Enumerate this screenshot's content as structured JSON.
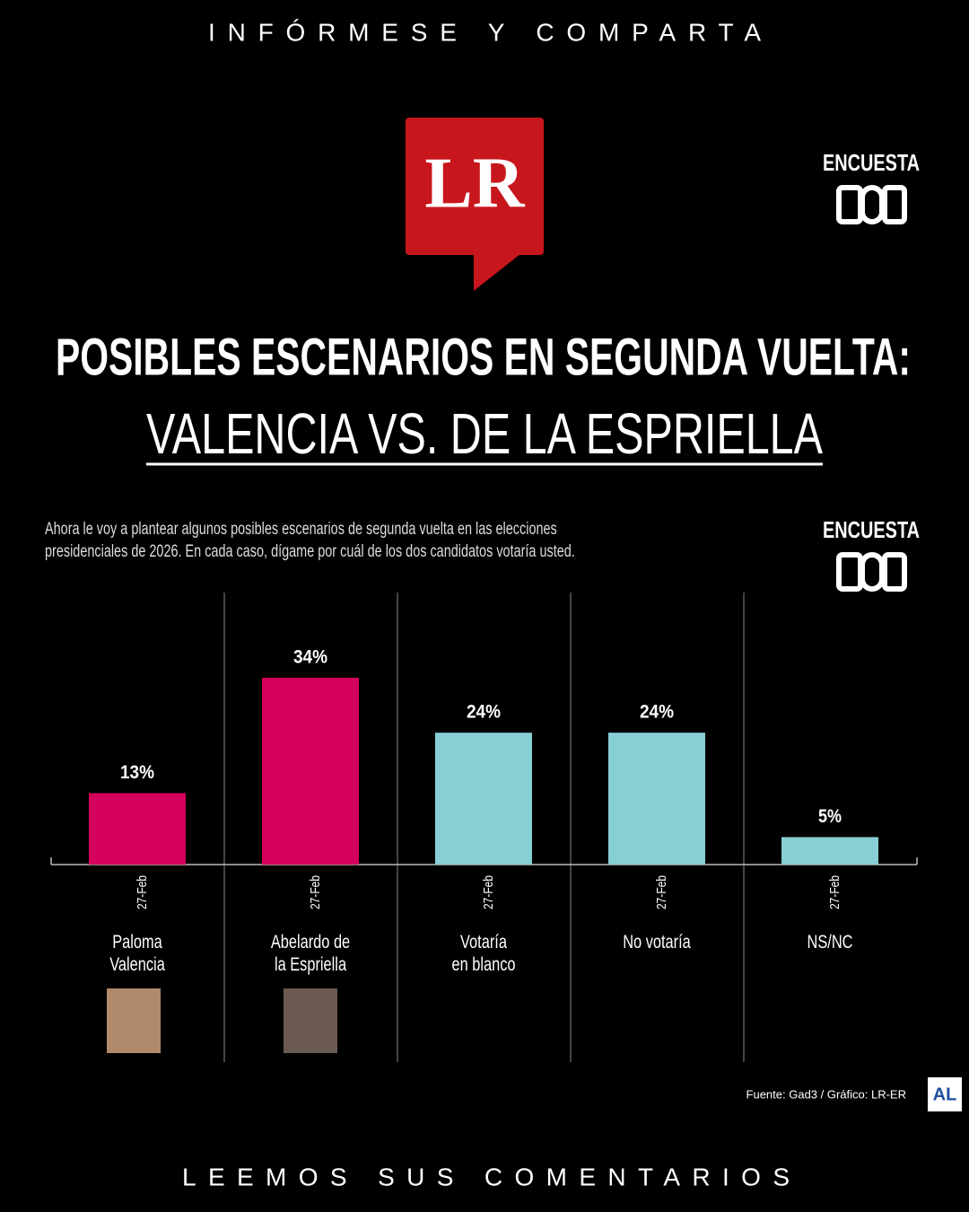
{
  "header": "INFÓRMESE Y COMPARTA",
  "logo": "LR",
  "badge": "ENCUESTA",
  "footer": "LEEMOS SUS COMENTARIOS",
  "chart_data": {
    "type": "bar",
    "title": "POSIBLES ESCENARIOS EN SEGUNDA VUELTA:",
    "subtitle": "VALENCIA VS. DE LA ESPRIELLA",
    "question": "Ahora le voy a plantear algunos posibles escenarios de segunda vuelta en las elecciones\npresidenciales de 2026. En cada caso, dígame por cuál de los dos candidatos votaría usted.",
    "badge": "ENCUESTA",
    "categories": [
      "Paloma\nValencia",
      "Abelardo de\nla Espriella",
      "Votaría\nen blanco",
      "No votaría",
      "NS/NC"
    ],
    "dates": [
      "27-Feb",
      "27-Feb",
      "27-Feb",
      "27-Feb",
      "27-Feb"
    ],
    "values": [
      13,
      34,
      24,
      24,
      5
    ],
    "value_labels": [
      "13%",
      "34%",
      "24%",
      "24%",
      "5%"
    ],
    "colors": [
      "#d5005b",
      "#d5005b",
      "#88ced5",
      "#88ced5",
      "#88ced5"
    ],
    "source": "Fuente: Gad3 / Gráfico: LR-ER",
    "source_logo": "AL"
  }
}
